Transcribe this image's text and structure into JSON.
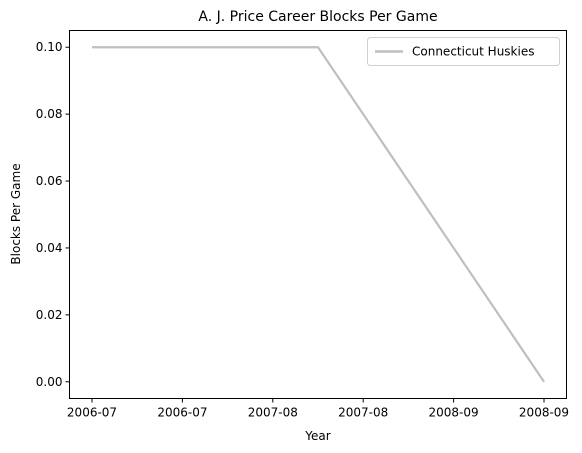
{
  "chart_data": {
    "type": "line",
    "title": "A. J. Price Career Blocks Per Game",
    "xlabel": "Year",
    "ylabel": "Blocks Per Game",
    "x": [
      "2006-07",
      "2007-08",
      "2008-09"
    ],
    "x_tick_labels": [
      "2006-07",
      "2006-07",
      "2007-08",
      "2007-08",
      "2008-09",
      "2008-09"
    ],
    "series": [
      {
        "name": "Connecticut Huskies",
        "values": [
          0.1,
          0.1,
          0.0
        ],
        "color": "#bfbfbf"
      }
    ],
    "y_ticks": [
      "0.00",
      "0.02",
      "0.04",
      "0.06",
      "0.08",
      "0.10"
    ],
    "ylim": [
      -0.005,
      0.105
    ],
    "grid": false,
    "legend_position": "top-right"
  }
}
